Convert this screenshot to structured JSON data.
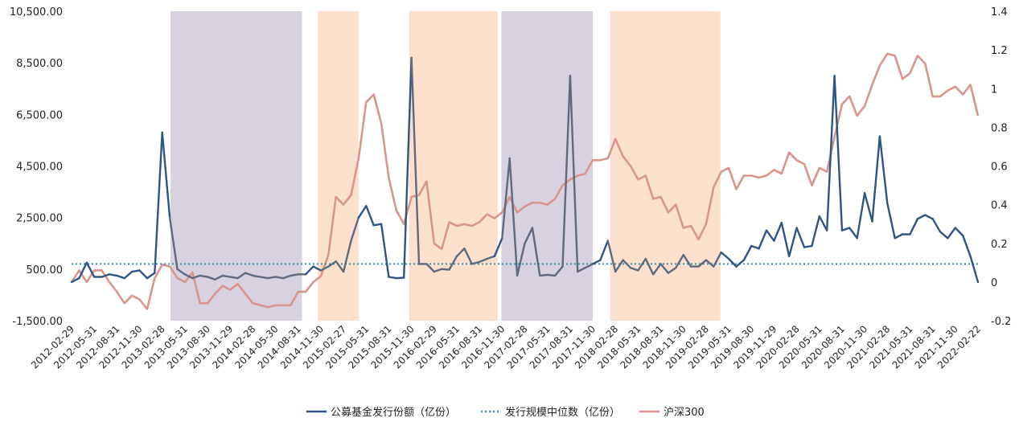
{
  "chart_data": {
    "type": "line",
    "title": "",
    "y_left": {
      "min": -1500,
      "max": 10500,
      "ticks": [
        "10,500.00",
        "8,500.00",
        "6,500.00",
        "4,500.00",
        "2,500.00",
        "500.00",
        "-1,500.00"
      ]
    },
    "y_right": {
      "min": -0.2,
      "max": 1.4,
      "ticks": [
        "1.4",
        "1.2",
        "1",
        "0.8",
        "0.6",
        "0.4",
        "0.2",
        "0",
        "-0.2"
      ]
    },
    "x_tick_labels": [
      "2012-02-29",
      "2012-05-31",
      "2012-08-31",
      "2012-11-30",
      "2013-02-28",
      "2013-05-31",
      "2013-08-30",
      "2013-11-29",
      "2014-02-28",
      "2014-05-30",
      "2014-08-31",
      "2014-11-30",
      "2015-02-27",
      "2015-05-31",
      "2015-08-31",
      "2015-11-30",
      "2016-02-29",
      "2016-05-31",
      "2016-08-31",
      "2016-11-30",
      "2017-02-28",
      "2017-05-31",
      "2017-08-31",
      "2017-11-30",
      "2018-02-28",
      "2018-05-31",
      "2018-08-31",
      "2018-11-30",
      "2019-02-28",
      "2019-05-31",
      "2019-08-30",
      "2019-11-29",
      "2020-02-28",
      "2020-05-31",
      "2020-08-31",
      "2020-11-30",
      "2021-02-28",
      "2021-05-31",
      "2021-08-31",
      "2021-11-30",
      "2022-02-22"
    ],
    "bands": [
      {
        "from": 13.1,
        "to": 30.5,
        "color": "#d8d1e0"
      },
      {
        "from": 32.6,
        "to": 38.0,
        "color": "#fbe0cd"
      },
      {
        "from": 44.7,
        "to": 56.4,
        "color": "#fbe0cd"
      },
      {
        "from": 56.9,
        "to": 69.0,
        "color": "#d8d1e0"
      },
      {
        "from": 71.3,
        "to": 85.9,
        "color": "#fbe0cd"
      }
    ],
    "series": [
      {
        "name": "公募基金发行份额（亿份）",
        "axis": "left",
        "style": "solid",
        "colors": {
          "light": "#2f5586",
          "band": "#5e6a7e"
        },
        "values": [
          0,
          150,
          750,
          200,
          200,
          300,
          250,
          150,
          400,
          450,
          150,
          350,
          5800,
          2500,
          500,
          300,
          150,
          250,
          200,
          100,
          250,
          200,
          150,
          350,
          250,
          200,
          150,
          200,
          150,
          250,
          300,
          300,
          600,
          450,
          600,
          800,
          400,
          1600,
          2500,
          2950,
          2200,
          2250,
          200,
          150,
          170,
          8700,
          700,
          700,
          400,
          500,
          480,
          1000,
          1300,
          700,
          780,
          900,
          1000,
          1700,
          4800,
          250,
          1500,
          2100,
          250,
          280,
          250,
          600,
          8000,
          400,
          550,
          700,
          850,
          1600,
          400,
          850,
          550,
          450,
          900,
          300,
          700,
          350,
          550,
          1050,
          600,
          600,
          850,
          600,
          1150,
          900,
          600,
          850,
          1400,
          1300,
          2000,
          1600,
          2300,
          1000,
          2100,
          1350,
          1400,
          2550,
          2000,
          8000,
          2000,
          2100,
          1700,
          3450,
          2350,
          5650,
          3050,
          1700,
          1850,
          1850,
          2450,
          2600,
          2450,
          1950,
          1700,
          2100,
          1800,
          1000,
          0
        ]
      },
      {
        "name": "发行规模中位数（亿份）",
        "axis": "left",
        "style": "dotted",
        "color": "#3a8fa8",
        "values": [
          700
        ]
      },
      {
        "name": "沪深300",
        "axis": "right",
        "style": "solid",
        "color": "#d9958d",
        "values": [
          0,
          0.06,
          0,
          0.06,
          0.06,
          0,
          -0.05,
          -0.11,
          -0.07,
          -0.09,
          -0.14,
          0.02,
          0.09,
          0.08,
          0.02,
          0,
          0.05,
          -0.11,
          -0.11,
          -0.06,
          -0.02,
          -0.04,
          -0.01,
          -0.06,
          -0.11,
          -0.12,
          -0.13,
          -0.12,
          -0.12,
          -0.12,
          -0.05,
          -0.05,
          0,
          0.03,
          0.14,
          0.44,
          0.4,
          0.45,
          0.64,
          0.93,
          0.97,
          0.82,
          0.54,
          0.37,
          0.3,
          0.44,
          0.45,
          0.52,
          0.2,
          0.17,
          0.31,
          0.29,
          0.3,
          0.29,
          0.31,
          0.35,
          0.33,
          0.36,
          0.44,
          0.36,
          0.39,
          0.41,
          0.41,
          0.4,
          0.43,
          0.5,
          0.53,
          0.55,
          0.56,
          0.63,
          0.63,
          0.64,
          0.74,
          0.65,
          0.6,
          0.53,
          0.55,
          0.43,
          0.44,
          0.36,
          0.4,
          0.28,
          0.29,
          0.22,
          0.3,
          0.49,
          0.57,
          0.59,
          0.48,
          0.55,
          0.55,
          0.54,
          0.55,
          0.58,
          0.56,
          0.67,
          0.63,
          0.61,
          0.5,
          0.59,
          0.57,
          0.75,
          0.92,
          0.96,
          0.86,
          0.91,
          1.02,
          1.12,
          1.18,
          1.17,
          1.05,
          1.08,
          1.17,
          1.13,
          0.96,
          0.96,
          0.99,
          1.01,
          0.97,
          1.02,
          0.86
        ]
      }
    ],
    "legend": {
      "position": "bottom"
    }
  },
  "legend_items": [
    {
      "label": "公募基金发行份额（亿份）",
      "color": "#2f5586",
      "style": "solid"
    },
    {
      "label": "发行规模中位数（亿份）",
      "color": "#3a8fa8",
      "style": "dotted"
    },
    {
      "label": "沪深300",
      "color": "#d9958d",
      "style": "solid"
    }
  ]
}
